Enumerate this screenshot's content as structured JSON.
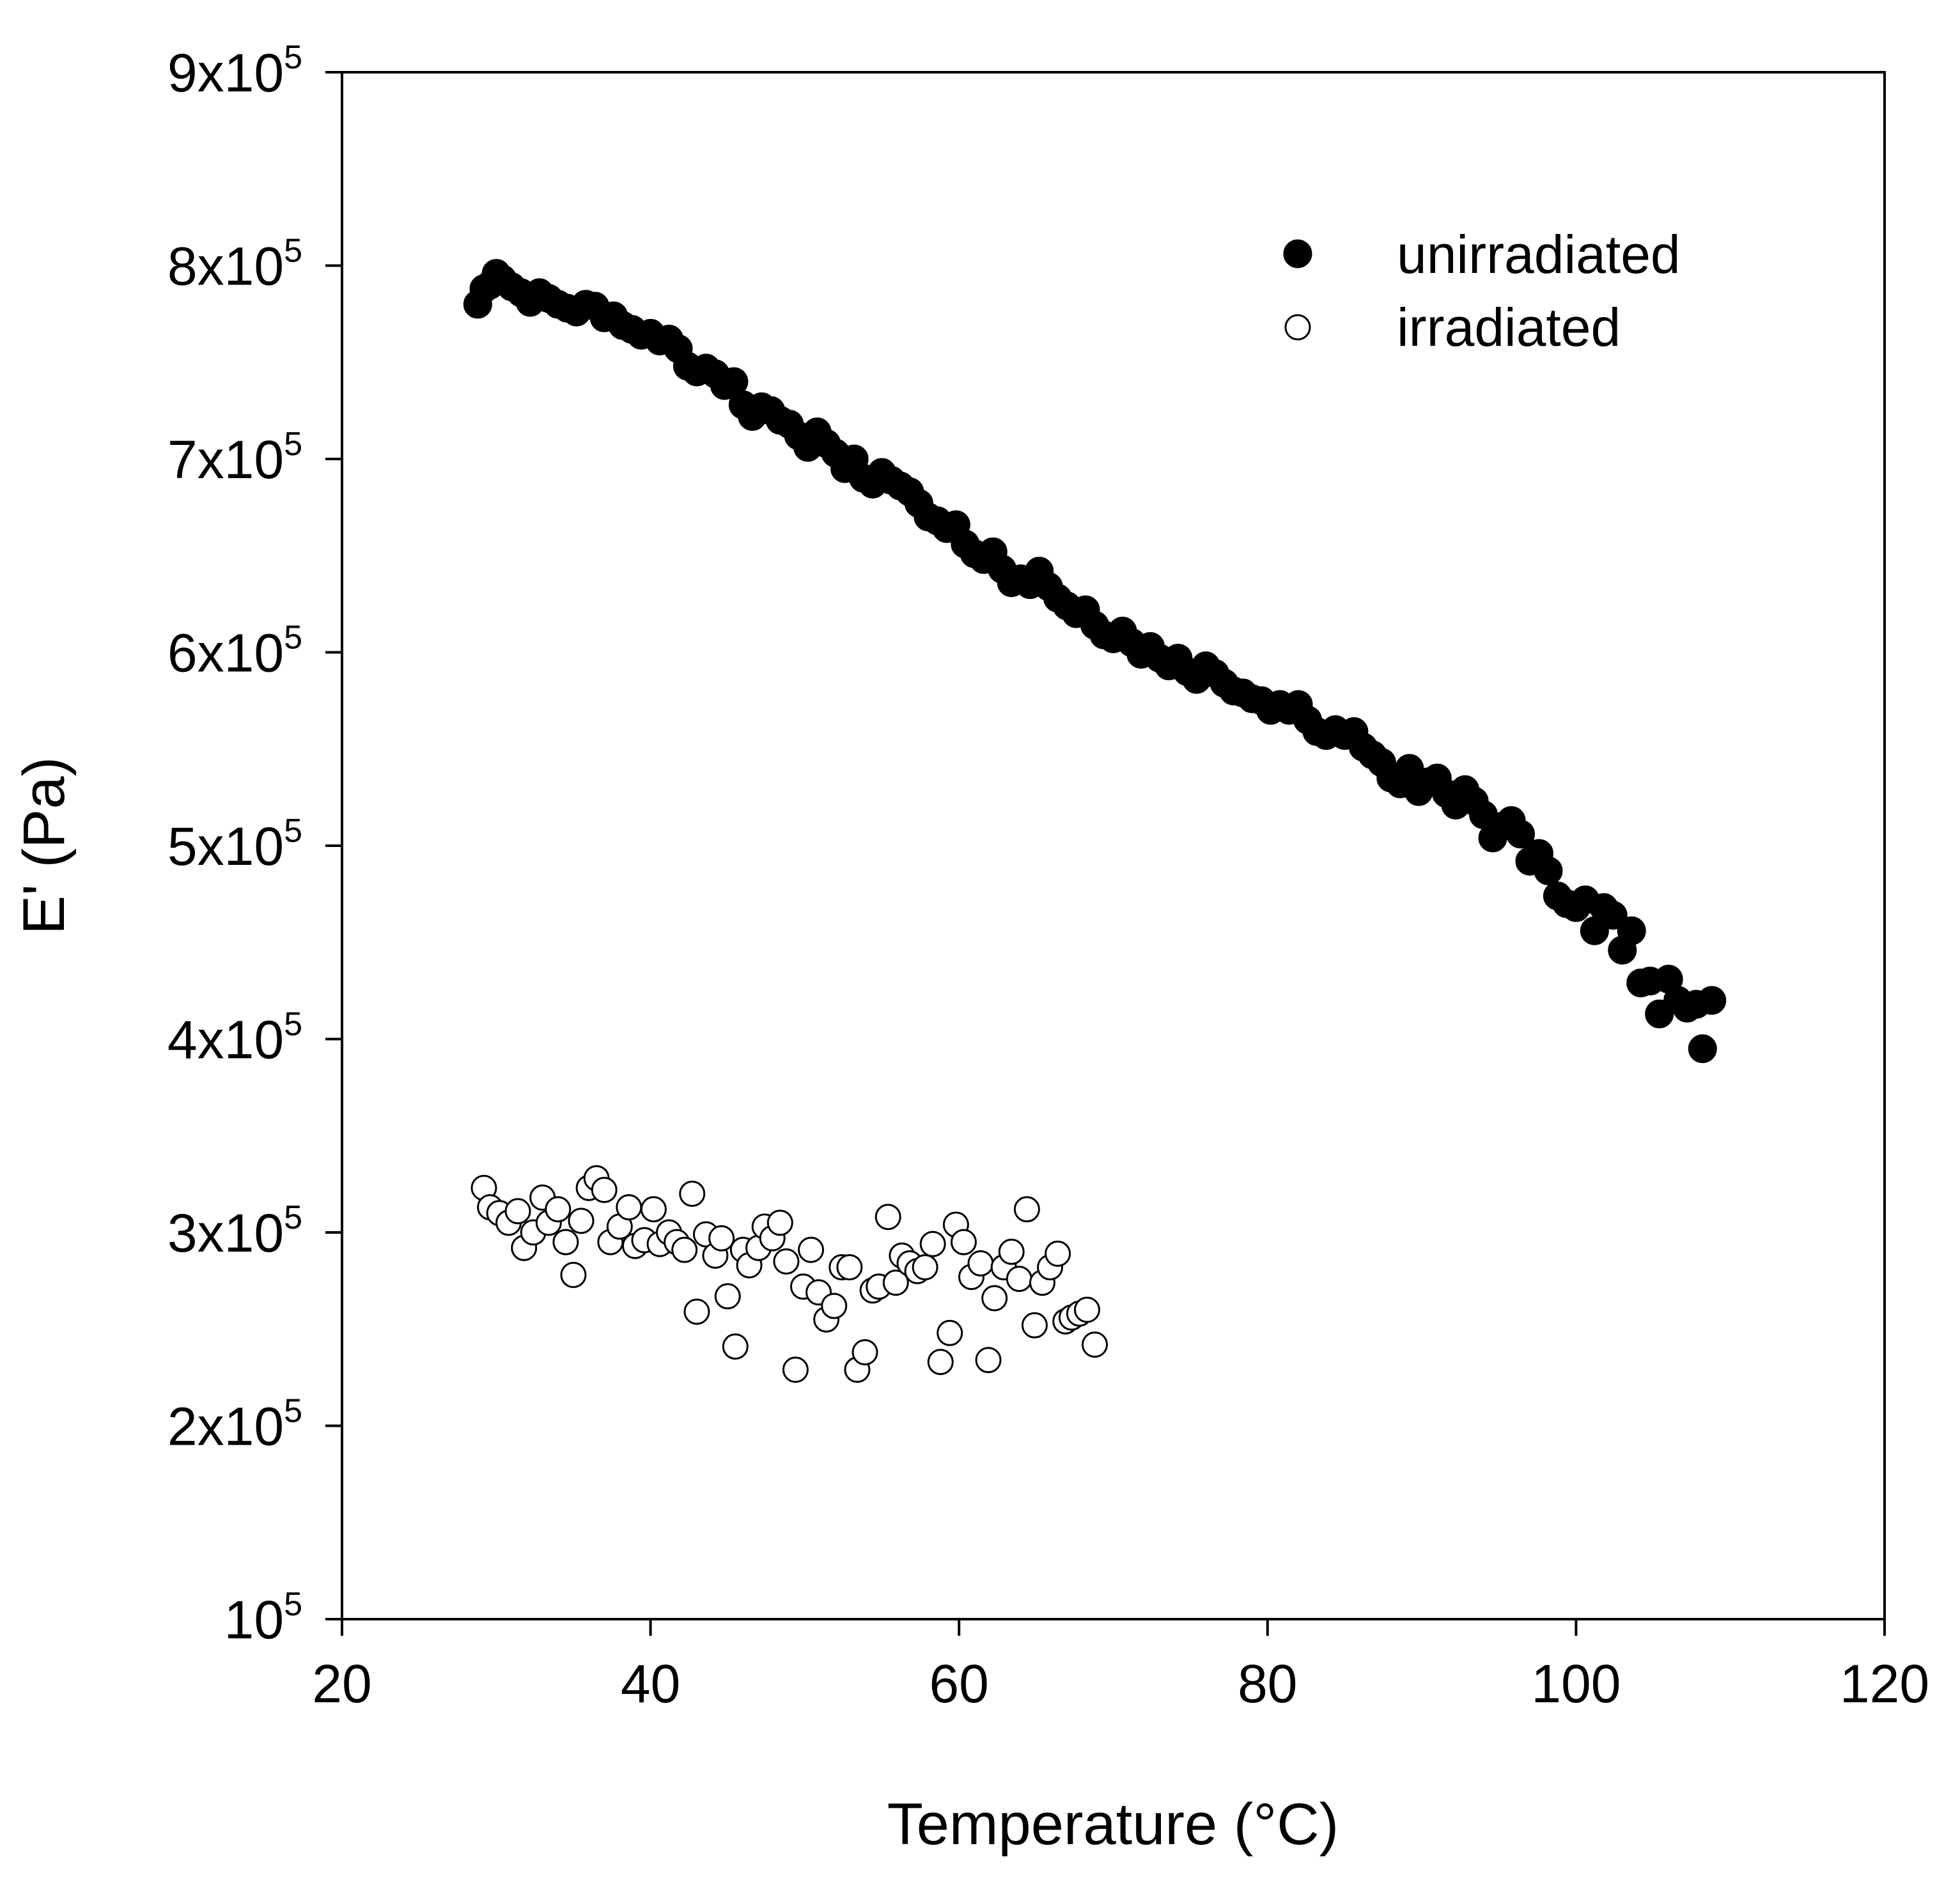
{
  "chart_data": {
    "type": "scatter",
    "title": "",
    "xlabel": "Temperature (°C)",
    "ylabel": "E' (Pa)",
    "xlim": [
      20,
      120
    ],
    "ylim": [
      100000,
      900000
    ],
    "grid": false,
    "legend_position": "top-right",
    "x_ticks": [
      {
        "value": 20,
        "label": "20"
      },
      {
        "value": 40,
        "label": "40"
      },
      {
        "value": 60,
        "label": "60"
      },
      {
        "value": 80,
        "label": "80"
      },
      {
        "value": 100,
        "label": "100"
      },
      {
        "value": 120,
        "label": "120"
      }
    ],
    "y_ticks": [
      {
        "value": 100000,
        "mantissa": "",
        "base": "10",
        "exp": "5"
      },
      {
        "value": 200000,
        "mantissa": "2x",
        "base": "10",
        "exp": "5"
      },
      {
        "value": 300000,
        "mantissa": "3x",
        "base": "10",
        "exp": "5"
      },
      {
        "value": 400000,
        "mantissa": "4x",
        "base": "10",
        "exp": "5"
      },
      {
        "value": 500000,
        "mantissa": "5x",
        "base": "10",
        "exp": "5"
      },
      {
        "value": 600000,
        "mantissa": "6x",
        "base": "10",
        "exp": "5"
      },
      {
        "value": 700000,
        "mantissa": "7x",
        "base": "10",
        "exp": "5"
      },
      {
        "value": 800000,
        "mantissa": "8x",
        "base": "10",
        "exp": "5"
      },
      {
        "value": 900000,
        "mantissa": "9x",
        "base": "10",
        "exp": "5"
      }
    ],
    "series": [
      {
        "name": "unirradiated",
        "marker": "filled-circle",
        "color": "#000000",
        "points": [
          [
            28.8,
            780000
          ],
          [
            29.2,
            788000
          ],
          [
            29.6,
            790000
          ],
          [
            30.0,
            796000
          ],
          [
            30.4,
            793000
          ],
          [
            31.0,
            789000
          ],
          [
            31.6,
            786000
          ],
          [
            32.2,
            781000
          ],
          [
            32.8,
            786000
          ],
          [
            33.4,
            783000
          ],
          [
            34.0,
            780000
          ],
          [
            34.6,
            778000
          ],
          [
            35.2,
            776000
          ],
          [
            35.8,
            780000
          ],
          [
            36.4,
            779000
          ],
          [
            37.0,
            773000
          ],
          [
            37.6,
            774000
          ],
          [
            38.2,
            769000
          ],
          [
            38.8,
            767000
          ],
          [
            39.4,
            764000
          ],
          [
            40.0,
            765000
          ],
          [
            40.6,
            761000
          ],
          [
            41.2,
            762000
          ],
          [
            41.8,
            757000
          ],
          [
            42.4,
            748000
          ],
          [
            43.0,
            745000
          ],
          [
            43.6,
            747000
          ],
          [
            44.2,
            744000
          ],
          [
            44.8,
            738000
          ],
          [
            45.4,
            740000
          ],
          [
            46.0,
            728000
          ],
          [
            46.6,
            722000
          ],
          [
            47.2,
            727000
          ],
          [
            47.8,
            725000
          ],
          [
            48.4,
            720000
          ],
          [
            49.0,
            718000
          ],
          [
            49.6,
            712000
          ],
          [
            50.2,
            706000
          ],
          [
            50.8,
            714000
          ],
          [
            51.4,
            708000
          ],
          [
            52.0,
            703000
          ],
          [
            52.6,
            695000
          ],
          [
            53.2,
            700000
          ],
          [
            53.8,
            690000
          ],
          [
            54.4,
            687000
          ],
          [
            55.0,
            693000
          ],
          [
            55.6,
            689000
          ],
          [
            56.2,
            686000
          ],
          [
            56.8,
            683000
          ],
          [
            57.4,
            677000
          ],
          [
            58.0,
            670000
          ],
          [
            58.6,
            668000
          ],
          [
            59.2,
            664000
          ],
          [
            59.8,
            666000
          ],
          [
            60.4,
            656000
          ],
          [
            61.0,
            651000
          ],
          [
            61.6,
            648000
          ],
          [
            62.2,
            652000
          ],
          [
            62.8,
            643000
          ],
          [
            63.4,
            636000
          ],
          [
            64.0,
            638000
          ],
          [
            64.6,
            635000
          ],
          [
            65.2,
            642000
          ],
          [
            65.8,
            634000
          ],
          [
            66.4,
            628000
          ],
          [
            67.0,
            624000
          ],
          [
            67.6,
            620000
          ],
          [
            68.2,
            622000
          ],
          [
            68.8,
            614000
          ],
          [
            69.4,
            609000
          ],
          [
            70.0,
            607000
          ],
          [
            70.6,
            611000
          ],
          [
            71.2,
            605000
          ],
          [
            71.8,
            599000
          ],
          [
            72.4,
            603000
          ],
          [
            73.0,
            597000
          ],
          [
            73.6,
            593000
          ],
          [
            74.2,
            597000
          ],
          [
            74.8,
            590000
          ],
          [
            75.4,
            586000
          ],
          [
            76.0,
            593000
          ],
          [
            76.6,
            589000
          ],
          [
            77.2,
            584000
          ],
          [
            77.8,
            580000
          ],
          [
            78.4,
            579000
          ],
          [
            79.0,
            576000
          ],
          [
            79.6,
            575000
          ],
          [
            80.2,
            570000
          ],
          [
            80.8,
            573000
          ],
          [
            81.4,
            570000
          ],
          [
            82.0,
            573000
          ],
          [
            82.6,
            565000
          ],
          [
            83.2,
            559000
          ],
          [
            83.8,
            557000
          ],
          [
            84.4,
            560000
          ],
          [
            85.0,
            557000
          ],
          [
            85.6,
            559000
          ],
          [
            86.2,
            551000
          ],
          [
            86.8,
            547000
          ],
          [
            87.4,
            543000
          ],
          [
            88.0,
            535000
          ],
          [
            88.6,
            532000
          ],
          [
            89.2,
            540000
          ],
          [
            89.8,
            528000
          ],
          [
            90.4,
            533000
          ],
          [
            91.0,
            535000
          ],
          [
            91.6,
            527000
          ],
          [
            92.2,
            521000
          ],
          [
            92.8,
            529000
          ],
          [
            93.4,
            523000
          ],
          [
            94.0,
            516000
          ],
          [
            94.6,
            504000
          ],
          [
            95.2,
            510000
          ],
          [
            95.8,
            513000
          ],
          [
            96.4,
            506000
          ],
          [
            97.0,
            492000
          ],
          [
            97.6,
            496000
          ],
          [
            98.2,
            487000
          ],
          [
            98.8,
            474000
          ],
          [
            99.4,
            470000
          ],
          [
            100.0,
            468000
          ],
          [
            100.6,
            472000
          ],
          [
            101.2,
            456000
          ],
          [
            101.8,
            468000
          ],
          [
            102.4,
            464000
          ],
          [
            103.0,
            446000
          ],
          [
            103.6,
            456000
          ],
          [
            104.2,
            429000
          ],
          [
            104.8,
            430000
          ],
          [
            105.4,
            413000
          ],
          [
            106.0,
            431000
          ],
          [
            106.6,
            420000
          ],
          [
            107.2,
            416000
          ],
          [
            107.8,
            418000
          ],
          [
            108.2,
            395000
          ],
          [
            108.8,
            420000
          ]
        ]
      },
      {
        "name": "irradiated",
        "marker": "open-circle",
        "color": "#000000",
        "points": [
          [
            29.2,
            323000
          ],
          [
            29.6,
            313000
          ],
          [
            30.2,
            310000
          ],
          [
            30.8,
            305000
          ],
          [
            31.4,
            311000
          ],
          [
            31.8,
            292000
          ],
          [
            32.4,
            300000
          ],
          [
            33.0,
            318000
          ],
          [
            33.4,
            305000
          ],
          [
            34.0,
            312000
          ],
          [
            34.5,
            295000
          ],
          [
            35.0,
            278000
          ],
          [
            35.5,
            306000
          ],
          [
            36.0,
            323000
          ],
          [
            36.5,
            328000
          ],
          [
            37.0,
            322000
          ],
          [
            37.4,
            295000
          ],
          [
            38.0,
            303000
          ],
          [
            38.6,
            313000
          ],
          [
            39.0,
            293000
          ],
          [
            39.6,
            296000
          ],
          [
            40.2,
            312000
          ],
          [
            40.6,
            294000
          ],
          [
            41.2,
            300000
          ],
          [
            41.7,
            295000
          ],
          [
            42.2,
            291000
          ],
          [
            42.7,
            320000
          ],
          [
            43.0,
            259000
          ],
          [
            43.6,
            299000
          ],
          [
            44.2,
            288000
          ],
          [
            44.6,
            297000
          ],
          [
            45.0,
            267000
          ],
          [
            45.5,
            241000
          ],
          [
            46.0,
            291000
          ],
          [
            46.4,
            283000
          ],
          [
            47.0,
            292000
          ],
          [
            47.4,
            303000
          ],
          [
            47.9,
            297000
          ],
          [
            48.4,
            305000
          ],
          [
            48.8,
            285000
          ],
          [
            49.4,
            229000
          ],
          [
            49.9,
            272000
          ],
          [
            50.4,
            291000
          ],
          [
            50.9,
            269000
          ],
          [
            51.4,
            255000
          ],
          [
            51.9,
            262000
          ],
          [
            52.4,
            282000
          ],
          [
            52.9,
            282000
          ],
          [
            53.4,
            229000
          ],
          [
            53.9,
            238000
          ],
          [
            54.4,
            270000
          ],
          [
            54.8,
            272000
          ],
          [
            55.4,
            308000
          ],
          [
            55.9,
            274000
          ],
          [
            56.3,
            288000
          ],
          [
            56.8,
            284000
          ],
          [
            57.3,
            280000
          ],
          [
            57.8,
            282000
          ],
          [
            58.3,
            294000
          ],
          [
            58.8,
            233000
          ],
          [
            59.4,
            248000
          ],
          [
            59.8,
            304000
          ],
          [
            60.3,
            295000
          ],
          [
            60.8,
            277000
          ],
          [
            61.4,
            284000
          ],
          [
            61.9,
            234000
          ],
          [
            62.3,
            266000
          ],
          [
            62.9,
            282000
          ],
          [
            63.4,
            290000
          ],
          [
            63.9,
            276000
          ],
          [
            64.4,
            312000
          ],
          [
            64.9,
            252000
          ],
          [
            65.4,
            274000
          ],
          [
            65.9,
            282000
          ],
          [
            66.4,
            289000
          ],
          [
            66.9,
            254000
          ],
          [
            67.3,
            256000
          ],
          [
            67.8,
            258000
          ],
          [
            68.3,
            260000
          ],
          [
            68.8,
            242000
          ]
        ]
      }
    ]
  }
}
